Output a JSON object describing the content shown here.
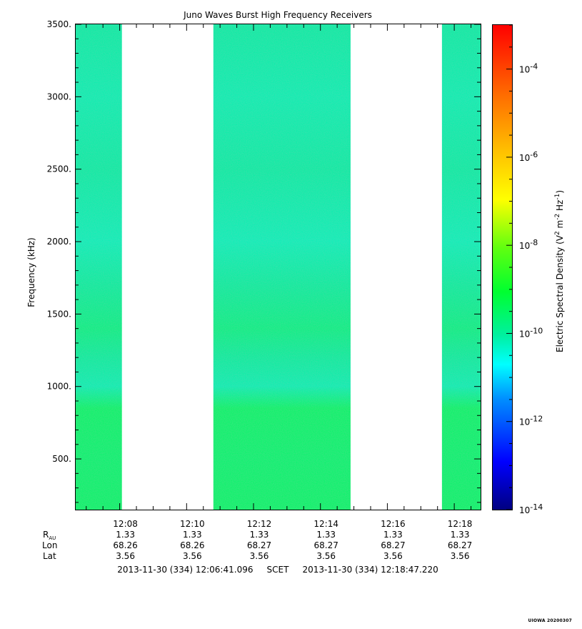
{
  "chart_data": {
    "type": "heatmap",
    "title": "Juno Waves Burst High Frequency Receivers",
    "ylabel": "Frequency (kHz)",
    "colorbar_label": "Electric Spectral Density (V² m⁻² Hz⁻¹)",
    "colorbar_label_base": "Electric Spectral Density (V",
    "colorbar_label_sup1": "2",
    "colorbar_label_mid1": " m",
    "colorbar_label_sup2": "-2",
    "colorbar_label_mid2": " Hz",
    "colorbar_label_sup3": "-1",
    "colorbar_label_end": ")",
    "y_ticks": [
      {
        "value": 500,
        "label": "500."
      },
      {
        "value": 1000,
        "label": "1000."
      },
      {
        "value": 1500,
        "label": "1500."
      },
      {
        "value": 2000,
        "label": "2000."
      },
      {
        "value": 2500,
        "label": "2500."
      },
      {
        "value": 3000,
        "label": "3000."
      },
      {
        "value": 3500,
        "label": "3500."
      }
    ],
    "ylim": [
      150,
      3500
    ],
    "x_ticks": [
      {
        "value": "12:08",
        "label": "12:08"
      },
      {
        "value": "12:10",
        "label": "12:10"
      },
      {
        "value": "12:12",
        "label": "12:12"
      },
      {
        "value": "12:14",
        "label": "12:14"
      },
      {
        "value": "12:16",
        "label": "12:16"
      },
      {
        "value": "12:18",
        "label": "12:18"
      }
    ],
    "xlim": [
      "12:06:41.096",
      "12:18:47.220"
    ],
    "colorbar_ticks": [
      {
        "exp": -4,
        "label_base": "10",
        "label_exp": "-4"
      },
      {
        "exp": -6,
        "label_base": "10",
        "label_exp": "-6"
      },
      {
        "exp": -8,
        "label_base": "10",
        "label_exp": "-8"
      },
      {
        "exp": -10,
        "label_base": "10",
        "label_exp": "-10"
      },
      {
        "exp": -12,
        "label_base": "10",
        "label_exp": "-12"
      },
      {
        "exp": -14,
        "label_base": "10",
        "label_exp": "-14"
      }
    ],
    "colorbar_range_log10": [
      -14,
      -3
    ],
    "data_segments": [
      {
        "start": "12:06:41.096",
        "end": "12:08:04"
      },
      {
        "start": "12:10:48",
        "end": "12:14:54"
      },
      {
        "start": "12:17:38",
        "end": "12:18:47.220"
      }
    ],
    "spectral_density_profile_log10": [
      {
        "freq_khz": 150,
        "value": -9.5
      },
      {
        "freq_khz": 500,
        "value": -9.55
      },
      {
        "freq_khz": 850,
        "value": -9.5
      },
      {
        "freq_khz": 1000,
        "value": -10.15
      },
      {
        "freq_khz": 1200,
        "value": -10.0
      },
      {
        "freq_khz": 1400,
        "value": -9.75
      },
      {
        "freq_khz": 1700,
        "value": -10.0
      },
      {
        "freq_khz": 2000,
        "value": -10.2
      },
      {
        "freq_khz": 2500,
        "value": -10.05
      },
      {
        "freq_khz": 3000,
        "value": -10.15
      },
      {
        "freq_khz": 3500,
        "value": -10.05
      }
    ],
    "ephemeris": {
      "labels": {
        "rau_base": "R",
        "rau_sub": "AU",
        "lon": "Lon",
        "lat": "Lat"
      },
      "rows": [
        {
          "time": "12:08",
          "rau": "1.33",
          "lon": "68.26",
          "lat": "3.56"
        },
        {
          "time": "12:10",
          "rau": "1.33",
          "lon": "68.26",
          "lat": "3.56"
        },
        {
          "time": "12:12",
          "rau": "1.33",
          "lon": "68.27",
          "lat": "3.56"
        },
        {
          "time": "12:14",
          "rau": "1.33",
          "lon": "68.27",
          "lat": "3.56"
        },
        {
          "time": "12:16",
          "rau": "1.33",
          "lon": "68.27",
          "lat": "3.56"
        },
        {
          "time": "12:18",
          "rau": "1.33",
          "lon": "68.27",
          "lat": "3.56"
        }
      ]
    },
    "time_range_text": "2013-11-30 (334) 12:06:41.096     SCET     2013-11-30 (334) 12:18:47.220",
    "corner_stamp": "UIOWA 20200307"
  }
}
